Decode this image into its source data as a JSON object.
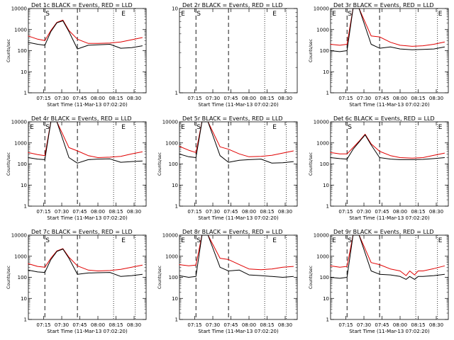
{
  "chart_data": [
    {
      "type": "line",
      "title": "Det 1c BLACK = Events, RED = LLD",
      "xlabel": "Start Time (11-Mar-13 07:02:20)",
      "ylabel": "Counts/sec",
      "y_scale": "log",
      "ylim": [
        1,
        10000
      ],
      "x_tick_labels": [
        "07:15",
        "07:30",
        "07:45",
        "08:00",
        "08:15",
        "08:30"
      ],
      "y_tick_labels": [
        "1",
        "10",
        "100",
        "1000",
        "10000"
      ],
      "markers": [
        {
          "label": "S",
          "x": "07:16"
        },
        {
          "label": "E",
          "x": "08:19"
        }
      ],
      "series": [
        {
          "name": "RED",
          "color": "#e00000",
          "x": [
            "07:02",
            "07:10",
            "07:16",
            "07:21",
            "07:26",
            "07:31",
            "07:36",
            "07:43",
            "07:52",
            "08:00",
            "08:10",
            "08:19",
            "08:28",
            "08:37"
          ],
          "values": [
            500,
            350,
            300,
            900,
            2200,
            2800,
            900,
            350,
            220,
            220,
            230,
            260,
            330,
            420
          ]
        },
        {
          "name": "BLACK",
          "color": "#000000",
          "x": [
            "07:02",
            "07:10",
            "07:16",
            "07:21",
            "07:26",
            "07:31",
            "07:36",
            "07:43",
            "07:52",
            "08:00",
            "08:10",
            "08:19",
            "08:28",
            "08:37"
          ],
          "values": [
            250,
            200,
            180,
            800,
            2100,
            2600,
            800,
            120,
            180,
            190,
            200,
            130,
            140,
            170
          ]
        }
      ]
    },
    {
      "type": "line",
      "title": "Det 2r BLACK = Events, RED = LLD",
      "xlabel": "Start Time (11-Mar-13 07:02:20)",
      "ylabel": "",
      "y_scale": "log",
      "ylim": [
        1,
        10
      ],
      "x_tick_labels": [
        "07:15",
        "07:30",
        "07:45",
        "08:00",
        "08:15",
        "08:30"
      ],
      "y_tick_labels": [
        "1",
        "10"
      ],
      "markers": [
        {
          "label": "E",
          "x": "07:03"
        },
        {
          "label": "S",
          "x": "07:16"
        },
        {
          "label": "E",
          "x": "08:19"
        }
      ],
      "series": []
    },
    {
      "type": "line",
      "title": "Det 3r BLACK = Events, RED = LLD",
      "xlabel": "Start Time (11-Mar-13 07:02:20)",
      "ylabel": "Counts/sec",
      "y_scale": "log",
      "ylim": [
        1,
        10000
      ],
      "x_tick_labels": [
        "07:15",
        "07:30",
        "07:45",
        "08:00",
        "08:15",
        "08:30"
      ],
      "y_tick_labels": [
        "1",
        "10",
        "100",
        "1000",
        "10000"
      ],
      "markers": [
        {
          "label": "E",
          "x": "07:03"
        },
        {
          "label": "S",
          "x": "07:16"
        },
        {
          "label": "E",
          "x": "08:31"
        }
      ],
      "series": [
        {
          "name": "RED",
          "color": "#e00000",
          "x": [
            "07:02",
            "07:10",
            "07:16",
            "07:21",
            "07:26",
            "07:36",
            "07:43",
            "07:52",
            "08:00",
            "08:10",
            "08:19",
            "08:28",
            "08:37"
          ],
          "values": [
            200,
            180,
            200,
            10000,
            10000,
            500,
            450,
            250,
            180,
            160,
            170,
            200,
            260
          ]
        },
        {
          "name": "BLACK",
          "color": "#000000",
          "x": [
            "07:02",
            "07:10",
            "07:16",
            "07:21",
            "07:26",
            "07:36",
            "07:43",
            "07:52",
            "08:00",
            "08:10",
            "08:19",
            "08:28",
            "08:37"
          ],
          "values": [
            100,
            90,
            100,
            10000,
            10000,
            200,
            130,
            150,
            120,
            110,
            115,
            120,
            150
          ]
        }
      ]
    },
    {
      "type": "line",
      "title": "Det 4r BLACK = Events, RED = LLD",
      "xlabel": "Start Time (11-Mar-13 07:02:20)",
      "ylabel": "Counts/sec",
      "y_scale": "log",
      "ylim": [
        1,
        10000
      ],
      "x_tick_labels": [
        "07:15",
        "07:30",
        "07:45",
        "08:00",
        "08:15",
        "08:30"
      ],
      "y_tick_labels": [
        "1",
        "10",
        "100",
        "1000",
        "10000"
      ],
      "markers": [
        {
          "label": "E",
          "x": "07:03"
        },
        {
          "label": "S",
          "x": "07:16"
        },
        {
          "label": "E",
          "x": "08:19"
        }
      ],
      "series": [
        {
          "name": "RED",
          "color": "#e00000",
          "x": [
            "07:02",
            "07:10",
            "07:16",
            "07:21",
            "07:26",
            "07:36",
            "07:43",
            "07:52",
            "08:00",
            "08:10",
            "08:19",
            "08:28",
            "08:37"
          ],
          "values": [
            350,
            280,
            250,
            10000,
            10000,
            600,
            420,
            250,
            200,
            210,
            230,
            300,
            380
          ]
        },
        {
          "name": "BLACK",
          "color": "#000000",
          "x": [
            "07:02",
            "07:10",
            "07:16",
            "07:21",
            "07:26",
            "07:36",
            "07:43",
            "07:52",
            "08:00",
            "08:10",
            "08:19",
            "08:28",
            "08:37"
          ],
          "values": [
            200,
            170,
            160,
            10000,
            10000,
            200,
            110,
            160,
            170,
            175,
            120,
            130,
            140
          ]
        }
      ]
    },
    {
      "type": "line",
      "title": "Det 5r BLACK = Events, RED = LLD",
      "xlabel": "Start Time (11-Mar-13 07:02:20)",
      "ylabel": "Counts/sec",
      "y_scale": "log",
      "ylim": [
        1,
        10000
      ],
      "x_tick_labels": [
        "07:15",
        "07:30",
        "07:45",
        "08:00",
        "08:15",
        "08:30"
      ],
      "y_tick_labels": [
        "1",
        "10",
        "100",
        "1000",
        "10000"
      ],
      "markers": [
        {
          "label": "E",
          "x": "07:03"
        },
        {
          "label": "S",
          "x": "07:16"
        },
        {
          "label": "E",
          "x": "08:19"
        }
      ],
      "series": [
        {
          "name": "RED",
          "color": "#e00000",
          "x": [
            "07:02",
            "07:10",
            "07:16",
            "07:21",
            "07:26",
            "07:36",
            "07:43",
            "07:52",
            "08:00",
            "08:10",
            "08:19",
            "08:28",
            "08:37"
          ],
          "values": [
            700,
            450,
            350,
            10000,
            10000,
            650,
            500,
            300,
            220,
            230,
            260,
            330,
            420
          ]
        },
        {
          "name": "BLACK",
          "color": "#000000",
          "x": [
            "07:02",
            "07:10",
            "07:16",
            "07:21",
            "07:26",
            "07:36",
            "07:43",
            "07:52",
            "08:00",
            "08:10",
            "08:19",
            "08:28",
            "08:37"
          ],
          "values": [
            300,
            220,
            200,
            10000,
            10000,
            250,
            120,
            150,
            160,
            170,
            110,
            115,
            130
          ]
        }
      ]
    },
    {
      "type": "line",
      "title": "Det 6c BLACK = Events, RED = LLD",
      "xlabel": "Start Time (11-Mar-13 07:02:20)",
      "ylabel": "Counts/sec",
      "y_scale": "log",
      "ylim": [
        1,
        10000
      ],
      "x_tick_labels": [
        "07:15",
        "07:30",
        "07:45",
        "08:00",
        "08:15",
        "08:30"
      ],
      "y_tick_labels": [
        "1",
        "10",
        "100",
        "1000",
        "10000"
      ],
      "markers": [
        {
          "label": "S",
          "x": "07:16"
        },
        {
          "label": "E",
          "x": "08:31"
        }
      ],
      "series": [
        {
          "name": "RED",
          "color": "#e00000",
          "x": [
            "07:02",
            "07:10",
            "07:16",
            "07:21",
            "07:26",
            "07:31",
            "07:36",
            "07:43",
            "07:52",
            "08:00",
            "08:10",
            "08:19",
            "08:28",
            "08:37"
          ],
          "values": [
            350,
            300,
            300,
            600,
            1200,
            2600,
            900,
            400,
            250,
            200,
            190,
            200,
            260,
            330
          ]
        },
        {
          "name": "BLACK",
          "color": "#000000",
          "x": [
            "07:02",
            "07:10",
            "07:16",
            "07:21",
            "07:26",
            "07:31",
            "07:36",
            "07:43",
            "07:52",
            "08:00",
            "08:10",
            "08:19",
            "08:28",
            "08:37"
          ],
          "values": [
            200,
            180,
            170,
            500,
            1100,
            2400,
            800,
            200,
            170,
            160,
            160,
            165,
            180,
            200
          ]
        }
      ]
    },
    {
      "type": "line",
      "title": "Det 7c BLACK = Events, RED = LLD",
      "xlabel": "Start Time (11-Mar-13 07:02:20)",
      "ylabel": "Counts/sec",
      "y_scale": "log",
      "ylim": [
        1,
        10000
      ],
      "x_tick_labels": [
        "07:15",
        "07:30",
        "07:45",
        "08:00",
        "08:15",
        "08:30"
      ],
      "y_tick_labels": [
        "1",
        "10",
        "100",
        "1000",
        "10000"
      ],
      "markers": [
        {
          "label": "S",
          "x": "07:16"
        },
        {
          "label": "E",
          "x": "08:19"
        }
      ],
      "series": [
        {
          "name": "RED",
          "color": "#e00000",
          "x": [
            "07:02",
            "07:10",
            "07:16",
            "07:21",
            "07:26",
            "07:31",
            "07:36",
            "07:43",
            "07:52",
            "08:00",
            "08:10",
            "08:19",
            "08:28",
            "08:37"
          ],
          "values": [
            450,
            330,
            300,
            800,
            1800,
            2300,
            900,
            350,
            220,
            200,
            210,
            240,
            300,
            380
          ]
        },
        {
          "name": "BLACK",
          "color": "#000000",
          "x": [
            "07:02",
            "07:10",
            "07:16",
            "07:21",
            "07:26",
            "07:31",
            "07:36",
            "07:43",
            "07:52",
            "08:00",
            "08:10",
            "08:19",
            "08:28",
            "08:37"
          ],
          "values": [
            220,
            180,
            170,
            700,
            1700,
            2200,
            800,
            140,
            160,
            165,
            170,
            110,
            120,
            140
          ]
        }
      ]
    },
    {
      "type": "line",
      "title": "Det 8r BLACK = Events, RED = LLD",
      "xlabel": "Start Time (11-Mar-13 07:02:20)",
      "ylabel": "Counts/sec",
      "y_scale": "log",
      "ylim": [
        1,
        10000
      ],
      "x_tick_labels": [
        "07:15",
        "07:30",
        "07:45",
        "08:00",
        "08:15",
        "08:30"
      ],
      "y_tick_labels": [
        "1",
        "10",
        "100",
        "1000",
        "10000"
      ],
      "markers": [
        {
          "label": "E",
          "x": "07:03"
        },
        {
          "label": "S",
          "x": "07:16"
        },
        {
          "label": "E",
          "x": "08:19"
        }
      ],
      "series": [
        {
          "name": "RED",
          "color": "#e00000",
          "x": [
            "07:02",
            "07:10",
            "07:16",
            "07:21",
            "07:26",
            "07:36",
            "07:43",
            "07:52",
            "08:00",
            "08:10",
            "08:19",
            "08:28",
            "08:37"
          ],
          "values": [
            400,
            350,
            380,
            10000,
            10000,
            800,
            700,
            400,
            250,
            230,
            250,
            300,
            330
          ]
        },
        {
          "name": "BLACK",
          "color": "#000000",
          "x": [
            "07:02",
            "07:10",
            "07:16",
            "07:21",
            "07:26",
            "07:36",
            "07:43",
            "07:52",
            "08:00",
            "08:10",
            "08:19",
            "08:28",
            "08:37"
          ],
          "values": [
            120,
            100,
            110,
            10000,
            10000,
            300,
            200,
            220,
            130,
            120,
            110,
            100,
            110
          ]
        }
      ]
    },
    {
      "type": "line",
      "title": "Det 9r BLACK = Events, RED = LLD",
      "xlabel": "Start Time (11-Mar-13 07:02:20)",
      "ylabel": "Counts/sec",
      "y_scale": "log",
      "ylim": [
        1,
        10000
      ],
      "x_tick_labels": [
        "07:15",
        "07:30",
        "07:45",
        "08:00",
        "08:15",
        "08:30"
      ],
      "y_tick_labels": [
        "1",
        "10",
        "100",
        "1000",
        "10000"
      ],
      "markers": [
        {
          "label": "E",
          "x": "07:03"
        },
        {
          "label": "S",
          "x": "07:16"
        },
        {
          "label": "E",
          "x": "08:31"
        }
      ],
      "series": [
        {
          "name": "RED",
          "color": "#e00000",
          "x": [
            "07:02",
            "07:10",
            "07:16",
            "07:21",
            "07:26",
            "07:36",
            "07:43",
            "07:52",
            "08:00",
            "08:05",
            "08:08",
            "08:12",
            "08:15",
            "08:19",
            "08:28",
            "08:37"
          ],
          "values": [
            350,
            300,
            330,
            10000,
            10000,
            500,
            400,
            250,
            200,
            120,
            200,
            130,
            200,
            200,
            260,
            350
          ]
        },
        {
          "name": "BLACK",
          "color": "#000000",
          "x": [
            "07:02",
            "07:10",
            "07:16",
            "07:21",
            "07:26",
            "07:36",
            "07:43",
            "07:52",
            "08:00",
            "08:05",
            "08:08",
            "08:12",
            "08:15",
            "08:19",
            "08:28",
            "08:37"
          ],
          "values": [
            100,
            90,
            100,
            10000,
            10000,
            200,
            140,
            130,
            110,
            80,
            110,
            80,
            110,
            110,
            120,
            140
          ]
        }
      ]
    }
  ]
}
